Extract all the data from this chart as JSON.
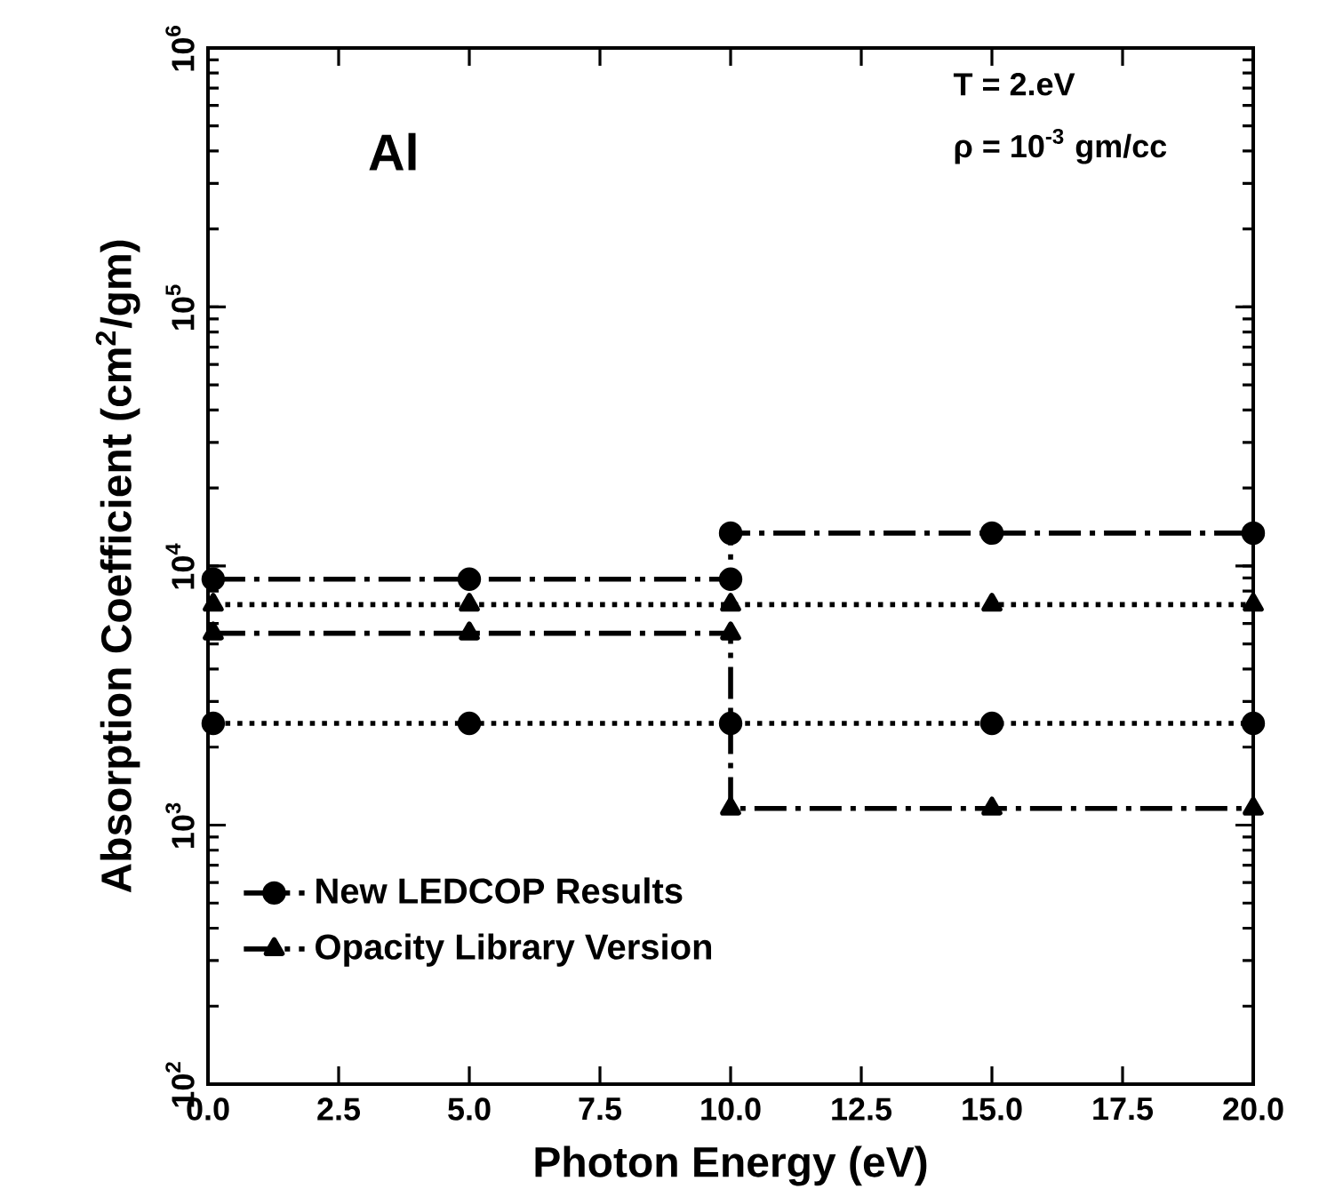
{
  "chart_data": {
    "type": "line",
    "xlabel": "Photon Energy (eV)",
    "ylabel": "Absorption Coefficient (cm$^{2}$/gm)",
    "annotations": [
      "Al",
      "T = 2.eV",
      "ρ = 10$^{-3}$ gm/cc"
    ],
    "xlim": [
      0,
      20
    ],
    "xticks": [
      {
        "value": 0,
        "label": "0.0"
      },
      {
        "value": 2.5,
        "label": "2.5"
      },
      {
        "value": 5,
        "label": "5.0"
      },
      {
        "value": 7.5,
        "label": "7.5"
      },
      {
        "value": 10,
        "label": "10.0"
      },
      {
        "value": 12.5,
        "label": "12.5"
      },
      {
        "value": 15,
        "label": "15.0"
      },
      {
        "value": 17.5,
        "label": "17.5"
      },
      {
        "value": 20,
        "label": "20.0"
      }
    ],
    "ylim": [
      100,
      1000000
    ],
    "yticks": [
      {
        "value": 100,
        "label": "10$^{2}$"
      },
      {
        "value": 1000,
        "label": "10$^{3}$"
      },
      {
        "value": 10000,
        "label": "10$^{4}$"
      },
      {
        "value": 100000,
        "label": "10$^{5}$"
      },
      {
        "value": 1000000,
        "label": "10$^{6}$"
      }
    ],
    "log": "y",
    "grid": false,
    "legend": "bottom left",
    "series": [
      {
        "name": "New LEDCOP Results",
        "color": "#000000",
        "marker": "circle",
        "line_style": "dashed",
        "x": [
          0.1,
          5,
          10,
          10,
          15,
          20
        ],
        "values": [
          8900,
          8900,
          8900,
          13400,
          13400,
          13400
        ]
      },
      {
        "name": "Opacity Library Version",
        "color": "#000000",
        "marker": "triangle",
        "line_style": "dashed",
        "x": [
          0.1,
          5,
          10,
          10,
          15,
          20
        ],
        "values": [
          5500,
          5500,
          5500,
          1160,
          1160,
          1160
        ]
      },
      {
        "color": "#000000",
        "marker": "circle",
        "line_style": "dotted",
        "x": [
          0.1,
          5,
          10,
          15,
          20
        ],
        "values": [
          2470,
          2470,
          2470,
          2470,
          2470
        ]
      },
      {
        "color": "#000000",
        "marker": "triangle",
        "line_style": "dotted",
        "x": [
          0.1,
          5,
          10,
          15,
          20
        ],
        "values": [
          7100,
          7100,
          7100,
          7100,
          7100
        ]
      }
    ]
  }
}
